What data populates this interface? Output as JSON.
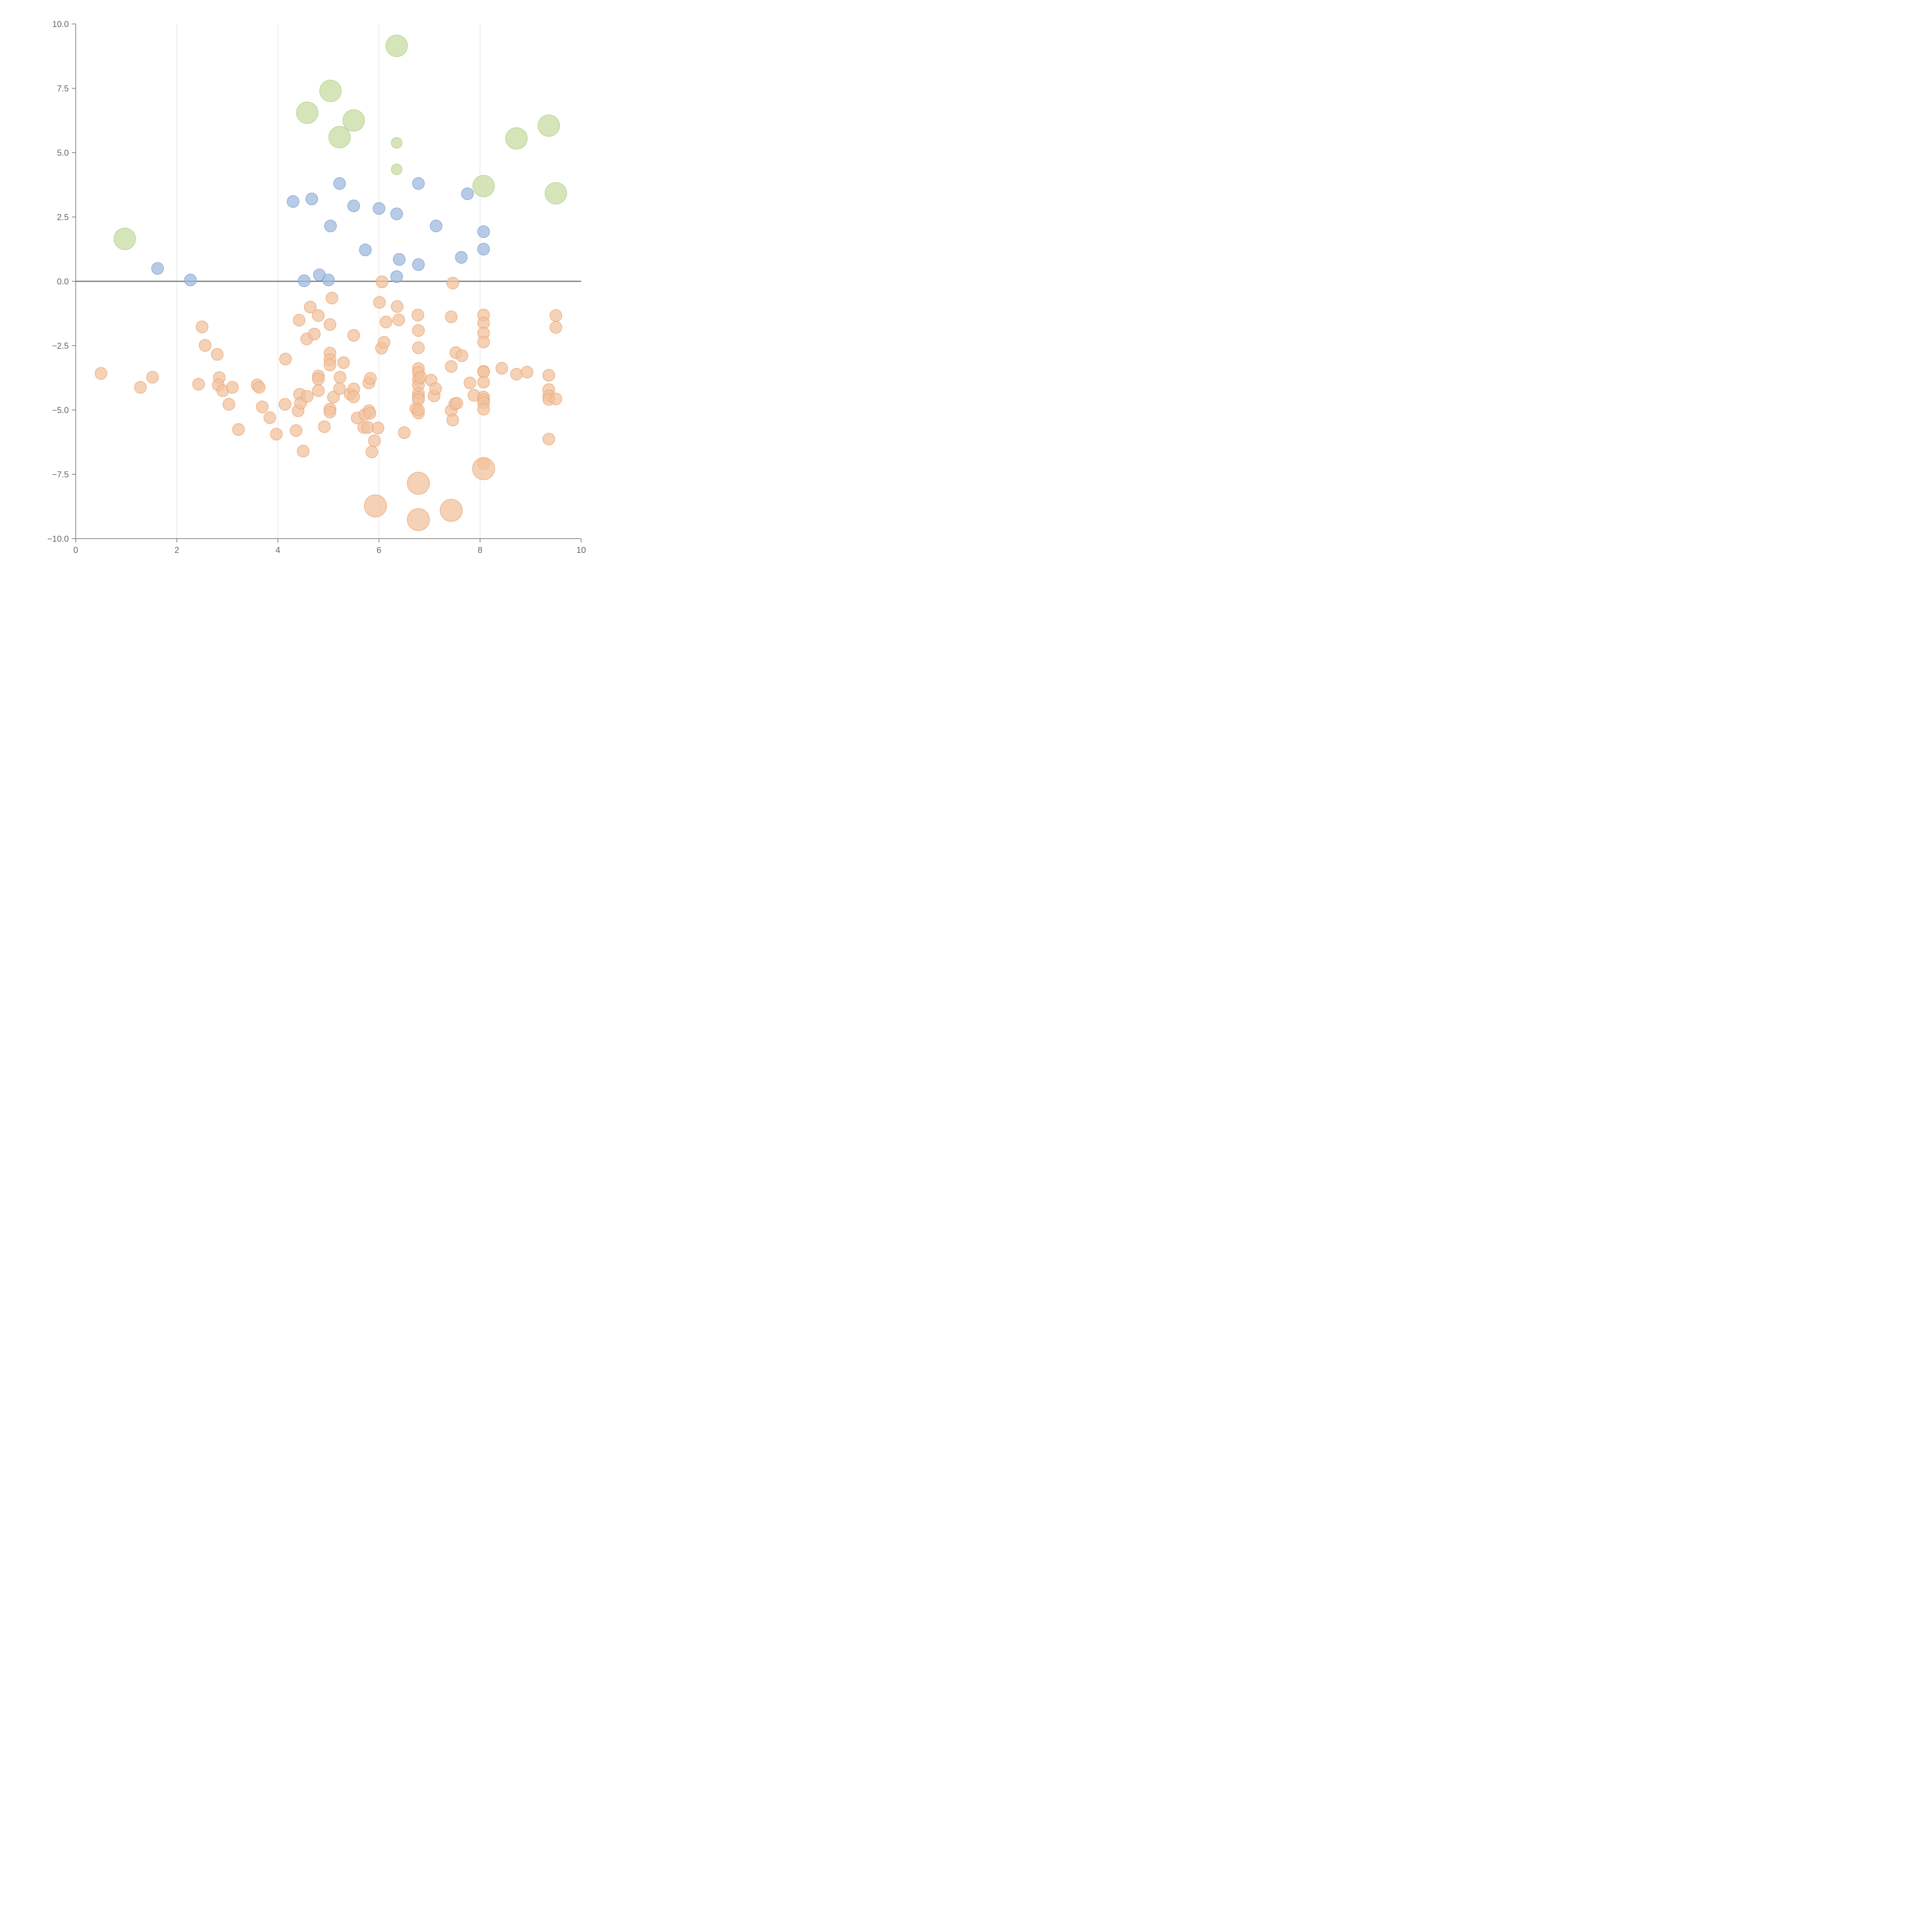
{
  "chart_data": {
    "type": "scatter",
    "title": "",
    "xlabel": "",
    "ylabel": "",
    "xlim": [
      0,
      10
    ],
    "ylim": [
      -10,
      10
    ],
    "grid": "vertical",
    "x_ticks": [
      {
        "value": 0,
        "label": "0"
      },
      {
        "value": 2,
        "label": "2"
      },
      {
        "value": 4,
        "label": "4"
      },
      {
        "value": 6,
        "label": "6"
      },
      {
        "value": 8,
        "label": "8"
      },
      {
        "value": 10,
        "label": "10"
      }
    ],
    "y_ticks": [
      {
        "value": 10,
        "label": "10.0"
      },
      {
        "value": 7.5,
        "label": "7.5"
      },
      {
        "value": 5,
        "label": "5.0"
      },
      {
        "value": 2.5,
        "label": "2.5"
      },
      {
        "value": 0,
        "label": "0.0"
      },
      {
        "value": -2.5,
        "label": "−2.5"
      },
      {
        "value": -5,
        "label": "−5.0"
      },
      {
        "value": -7.5,
        "label": "−7.5"
      },
      {
        "value": -10,
        "label": "−10.0"
      }
    ],
    "series": [
      {
        "name": "blue",
        "fill": "#9fb9df",
        "stroke": "#7f9fcf",
        "size": "small",
        "points": [
          {
            "x": 1.62,
            "y": 0.5
          },
          {
            "x": 2.27,
            "y": 0.05
          },
          {
            "x": 4.3,
            "y": 3.1
          },
          {
            "x": 4.67,
            "y": 3.2
          },
          {
            "x": 4.52,
            "y": 0.02
          },
          {
            "x": 4.82,
            "y": 0.25
          },
          {
            "x": 5.0,
            "y": 0.05
          },
          {
            "x": 5.04,
            "y": 2.15
          },
          {
            "x": 5.22,
            "y": 3.8
          },
          {
            "x": 5.5,
            "y": 2.93
          },
          {
            "x": 5.73,
            "y": 1.22
          },
          {
            "x": 6.0,
            "y": 2.83
          },
          {
            "x": 6.35,
            "y": 2.62
          },
          {
            "x": 6.4,
            "y": 0.85
          },
          {
            "x": 6.35,
            "y": 0.18
          },
          {
            "x": 6.78,
            "y": 3.8
          },
          {
            "x": 6.78,
            "y": 0.65
          },
          {
            "x": 7.13,
            "y": 2.15
          },
          {
            "x": 7.63,
            "y": 0.93
          },
          {
            "x": 7.75,
            "y": 3.4
          },
          {
            "x": 8.07,
            "y": 1.93
          },
          {
            "x": 8.07,
            "y": 1.25
          }
        ]
      },
      {
        "name": "green",
        "fill": "#c7dca1",
        "stroke": "#b3cd86",
        "size": "large",
        "points": [
          {
            "x": 0.97,
            "y": 1.65,
            "r": 1.0
          },
          {
            "x": 4.58,
            "y": 6.55,
            "r": 1.0
          },
          {
            "x": 5.04,
            "y": 7.4,
            "r": 1.0
          },
          {
            "x": 5.22,
            "y": 5.6,
            "r": 1.0
          },
          {
            "x": 5.5,
            "y": 6.25,
            "r": 1.0
          },
          {
            "x": 6.35,
            "y": 9.15,
            "r": 1.0
          },
          {
            "x": 6.35,
            "y": 5.38,
            "r": 0.5
          },
          {
            "x": 6.35,
            "y": 4.35,
            "r": 0.5
          },
          {
            "x": 8.07,
            "y": 3.7,
            "r": 1.0
          },
          {
            "x": 8.72,
            "y": 5.55,
            "r": 1.0
          },
          {
            "x": 9.36,
            "y": 6.05,
            "r": 1.0
          },
          {
            "x": 9.5,
            "y": 3.42,
            "r": 1.0
          }
        ]
      },
      {
        "name": "orange",
        "fill": "#f1c19d",
        "stroke": "#e6a676",
        "size": "small",
        "points": [
          {
            "x": 0.5,
            "y": -3.58
          },
          {
            "x": 1.28,
            "y": -4.12
          },
          {
            "x": 1.52,
            "y": -3.73
          },
          {
            "x": 2.5,
            "y": -1.77
          },
          {
            "x": 2.56,
            "y": -2.49
          },
          {
            "x": 2.43,
            "y": -4.0
          },
          {
            "x": 2.8,
            "y": -2.84
          },
          {
            "x": 2.84,
            "y": -3.74
          },
          {
            "x": 2.82,
            "y": -4.03
          },
          {
            "x": 2.91,
            "y": -4.25
          },
          {
            "x": 3.1,
            "y": -4.12
          },
          {
            "x": 3.03,
            "y": -4.78
          },
          {
            "x": 3.22,
            "y": -5.76
          },
          {
            "x": 3.59,
            "y": -4.03
          },
          {
            "x": 3.63,
            "y": -4.12
          },
          {
            "x": 3.69,
            "y": -4.88
          },
          {
            "x": 3.84,
            "y": -5.3
          },
          {
            "x": 3.97,
            "y": -5.94
          },
          {
            "x": 4.15,
            "y": -3.02
          },
          {
            "x": 4.14,
            "y": -4.78
          },
          {
            "x": 4.36,
            "y": -5.8
          },
          {
            "x": 4.4,
            "y": -5.03
          },
          {
            "x": 4.42,
            "y": -1.51
          },
          {
            "x": 4.43,
            "y": -4.39
          },
          {
            "x": 4.45,
            "y": -4.73
          },
          {
            "x": 4.5,
            "y": -6.6
          },
          {
            "x": 4.58,
            "y": -4.47
          },
          {
            "x": 4.57,
            "y": -2.24
          },
          {
            "x": 4.64,
            "y": -1.0
          },
          {
            "x": 4.72,
            "y": -2.05
          },
          {
            "x": 4.8,
            "y": -1.33
          },
          {
            "x": 4.8,
            "y": -3.68
          },
          {
            "x": 4.8,
            "y": -3.8
          },
          {
            "x": 4.8,
            "y": -4.25
          },
          {
            "x": 4.92,
            "y": -5.65
          },
          {
            "x": 5.03,
            "y": -1.68
          },
          {
            "x": 5.03,
            "y": -2.79
          },
          {
            "x": 5.03,
            "y": -3.05
          },
          {
            "x": 5.03,
            "y": -3.25
          },
          {
            "x": 5.03,
            "y": -4.97
          },
          {
            "x": 5.03,
            "y": -5.08
          },
          {
            "x": 5.07,
            "y": -0.65
          },
          {
            "x": 5.1,
            "y": -4.5
          },
          {
            "x": 5.23,
            "y": -3.73
          },
          {
            "x": 5.22,
            "y": -4.17
          },
          {
            "x": 5.3,
            "y": -3.16
          },
          {
            "x": 5.43,
            "y": -4.38
          },
          {
            "x": 5.5,
            "y": -2.1
          },
          {
            "x": 5.5,
            "y": -4.18
          },
          {
            "x": 5.5,
            "y": -4.49
          },
          {
            "x": 5.57,
            "y": -5.31
          },
          {
            "x": 5.7,
            "y": -5.68
          },
          {
            "x": 5.72,
            "y": -5.18
          },
          {
            "x": 5.8,
            "y": -5.03
          },
          {
            "x": 5.8,
            "y": -3.95
          },
          {
            "x": 5.83,
            "y": -3.77
          },
          {
            "x": 5.82,
            "y": -5.13
          },
          {
            "x": 5.78,
            "y": -5.68
          },
          {
            "x": 5.86,
            "y": -6.63
          },
          {
            "x": 5.91,
            "y": -6.2
          },
          {
            "x": 5.98,
            "y": -5.7
          },
          {
            "x": 6.01,
            "y": -0.82
          },
          {
            "x": 6.06,
            "y": -0.02
          },
          {
            "x": 6.05,
            "y": -2.6
          },
          {
            "x": 6.1,
            "y": -2.37
          },
          {
            "x": 6.14,
            "y": -1.58
          },
          {
            "x": 6.36,
            "y": -0.98
          },
          {
            "x": 6.39,
            "y": -1.5
          },
          {
            "x": 6.5,
            "y": -5.88
          },
          {
            "x": 6.73,
            "y": -4.95
          },
          {
            "x": 6.77,
            "y": -1.31
          },
          {
            "x": 6.78,
            "y": -1.91
          },
          {
            "x": 6.78,
            "y": -2.58
          },
          {
            "x": 6.78,
            "y": -3.39
          },
          {
            "x": 6.78,
            "y": -3.55
          },
          {
            "x": 6.78,
            "y": -3.82
          },
          {
            "x": 6.78,
            "y": -4.03
          },
          {
            "x": 6.78,
            "y": -4.35
          },
          {
            "x": 6.78,
            "y": -4.5
          },
          {
            "x": 6.78,
            "y": -4.6
          },
          {
            "x": 6.78,
            "y": -5.12
          },
          {
            "x": 6.78,
            "y": -5.0
          },
          {
            "x": 6.82,
            "y": -3.73
          },
          {
            "x": 7.03,
            "y": -3.84
          },
          {
            "x": 7.09,
            "y": -4.45
          },
          {
            "x": 7.12,
            "y": -4.17
          },
          {
            "x": 7.43,
            "y": -1.38
          },
          {
            "x": 7.43,
            "y": -3.31
          },
          {
            "x": 7.43,
            "y": -5.02
          },
          {
            "x": 7.46,
            "y": -0.07
          },
          {
            "x": 7.46,
            "y": -5.39
          },
          {
            "x": 7.5,
            "y": -4.76
          },
          {
            "x": 7.54,
            "y": -4.74
          },
          {
            "x": 7.52,
            "y": -2.77
          },
          {
            "x": 7.64,
            "y": -2.89
          },
          {
            "x": 7.8,
            "y": -3.95
          },
          {
            "x": 7.88,
            "y": -4.43
          },
          {
            "x": 8.07,
            "y": -1.31
          },
          {
            "x": 8.07,
            "y": -1.62
          },
          {
            "x": 8.07,
            "y": -2.01
          },
          {
            "x": 8.07,
            "y": -2.36
          },
          {
            "x": 8.07,
            "y": -3.5
          },
          {
            "x": 8.07,
            "y": -3.52
          },
          {
            "x": 8.07,
            "y": -3.92
          },
          {
            "x": 8.07,
            "y": -4.5
          },
          {
            "x": 8.07,
            "y": -4.6
          },
          {
            "x": 8.07,
            "y": -4.72
          },
          {
            "x": 8.07,
            "y": -4.97
          },
          {
            "x": 8.07,
            "y": -7.08
          },
          {
            "x": 8.43,
            "y": -3.38
          },
          {
            "x": 8.72,
            "y": -3.61
          },
          {
            "x": 8.93,
            "y": -3.53
          },
          {
            "x": 9.36,
            "y": -3.65
          },
          {
            "x": 9.36,
            "y": -4.21
          },
          {
            "x": 9.36,
            "y": -4.45
          },
          {
            "x": 9.36,
            "y": -4.59
          },
          {
            "x": 9.36,
            "y": -6.13
          },
          {
            "x": 9.5,
            "y": -1.33
          },
          {
            "x": 9.5,
            "y": -1.79
          },
          {
            "x": 9.5,
            "y": -4.57
          },
          {
            "x": 5.93,
            "y": -8.73,
            "r": 1.0
          },
          {
            "x": 6.78,
            "y": -7.85,
            "r": 1.0
          },
          {
            "x": 6.78,
            "y": -9.26,
            "r": 1.0
          },
          {
            "x": 7.43,
            "y": -8.9,
            "r": 1.0
          },
          {
            "x": 8.07,
            "y": -7.28,
            "r": 1.0
          }
        ]
      }
    ]
  }
}
